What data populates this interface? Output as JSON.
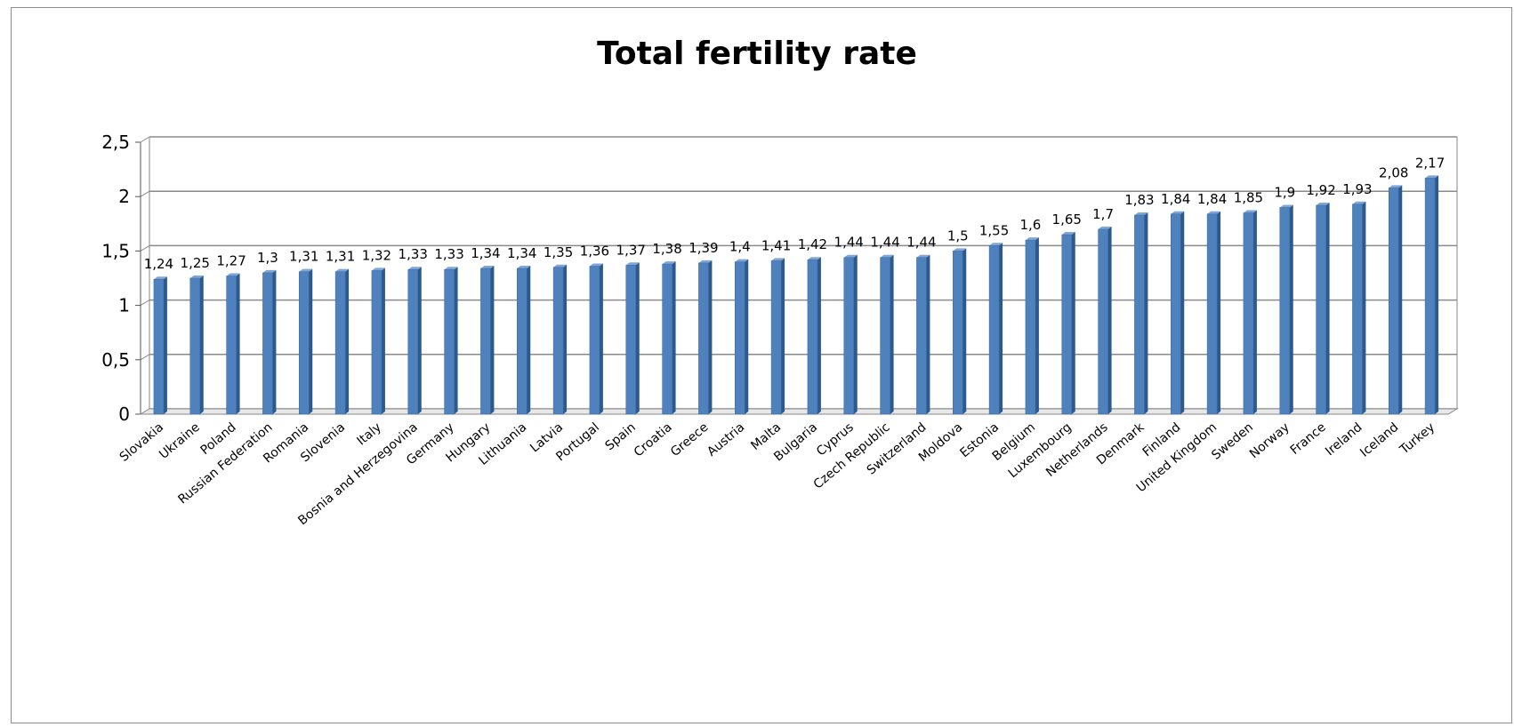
{
  "chart_data": {
    "type": "bar",
    "title": "Total fertility rate",
    "categories": [
      "Slovakia",
      "Ukraine",
      "Poland",
      "Russian Federation",
      "Romania",
      "Slovenia",
      "Italy",
      "Bosnia and Herzegovina",
      "Germany",
      "Hungary",
      "Lithuania",
      "Latvia",
      "Portugal",
      "Spain",
      "Croatia",
      "Greece",
      "Austria",
      "Malta",
      "Bulgaria",
      "Cyprus",
      "Czech Republic",
      "Switzerland",
      "Moldova",
      "Estonia",
      "Belgium",
      "Luxembourg",
      "Netherlands",
      "Denmark",
      "Finland",
      "United Kingdom",
      "Sweden",
      "Norway",
      "France",
      "Ireland",
      "Iceland",
      "Turkey"
    ],
    "values": [
      1.24,
      1.25,
      1.27,
      1.3,
      1.31,
      1.31,
      1.32,
      1.33,
      1.33,
      1.34,
      1.34,
      1.35,
      1.36,
      1.37,
      1.38,
      1.39,
      1.4,
      1.41,
      1.42,
      1.44,
      1.44,
      1.44,
      1.5,
      1.55,
      1.6,
      1.65,
      1.7,
      1.83,
      1.84,
      1.84,
      1.85,
      1.9,
      1.92,
      1.93,
      2.08,
      2.17
    ],
    "data_labels": [
      "1,24",
      "1,25",
      "1,27",
      "1,3",
      "1,31",
      "1,31",
      "1,32",
      "1,33",
      "1,33",
      "1,34",
      "1,34",
      "1,35",
      "1,36",
      "1,37",
      "1,38",
      "1,39",
      "1,4",
      "1,41",
      "1,42",
      "1,44",
      "1,44",
      "1,44",
      "1,5",
      "1,55",
      "1,6",
      "1,65",
      "1,7",
      "1,83",
      "1,84",
      "1,84",
      "1,85",
      "1,9",
      "1,92",
      "1,93",
      "2,08",
      "2,17"
    ],
    "ylim": [
      0,
      2.5
    ],
    "yticks": [
      0,
      0.5,
      1,
      1.5,
      2,
      2.5
    ],
    "ytick_labels": [
      "0",
      "0,5",
      "1",
      "1,5",
      "2",
      "2,5"
    ],
    "grid": true,
    "legend": "none",
    "bar_color": "#4f81bd"
  }
}
